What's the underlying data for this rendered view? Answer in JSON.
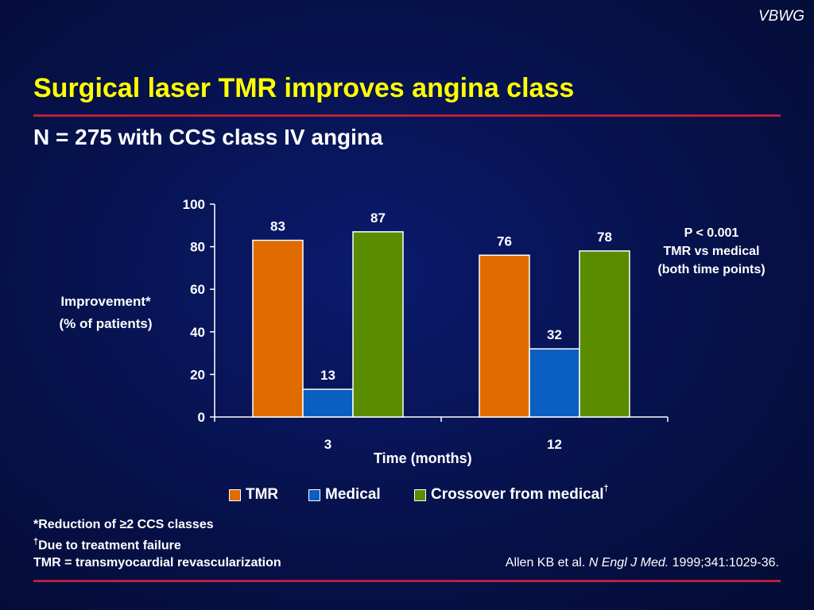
{
  "brand": "VBWG",
  "title": "Surgical laser TMR improves angina class",
  "subtitle": "N = 275 with CCS class IV angina",
  "y_label_line1": "Improvement*",
  "y_label_line2": "(% of patients)",
  "x_label": "Time (months)",
  "p_note": [
    "P < 0.001",
    "TMR vs medical",
    "(both time points)"
  ],
  "legend": [
    {
      "label": "TMR",
      "color": "#e06c00"
    },
    {
      "label": "Medical",
      "color": "#0a5fc0"
    },
    {
      "label": "Crossover from medical",
      "color": "#5a8c00",
      "sup": "†"
    }
  ],
  "footnotes": {
    "line1": "*Reduction of ≥2 CCS classes",
    "line2_sup": "†",
    "line2": "Due to treatment failure",
    "line3": "TMR = transmyocardial revascularization"
  },
  "citation": {
    "authors": "Allen KB et al.",
    "journal": "N Engl J Med.",
    "details": "1999;341:1029-36."
  },
  "chart_data": {
    "type": "bar",
    "categories": [
      "3",
      "12"
    ],
    "series": [
      {
        "name": "TMR",
        "values": [
          83,
          76
        ],
        "color": "#e06c00"
      },
      {
        "name": "Medical",
        "values": [
          13,
          32
        ],
        "color": "#0a5fc0"
      },
      {
        "name": "Crossover from medical",
        "values": [
          87,
          78
        ],
        "color": "#5a8c00"
      }
    ],
    "yticks": [
      0,
      20,
      40,
      60,
      80,
      100
    ],
    "ylim": [
      0,
      100
    ],
    "xlabel": "Time (months)",
    "ylabel": "Improvement* (% of patients)",
    "legend_position": "bottom"
  }
}
